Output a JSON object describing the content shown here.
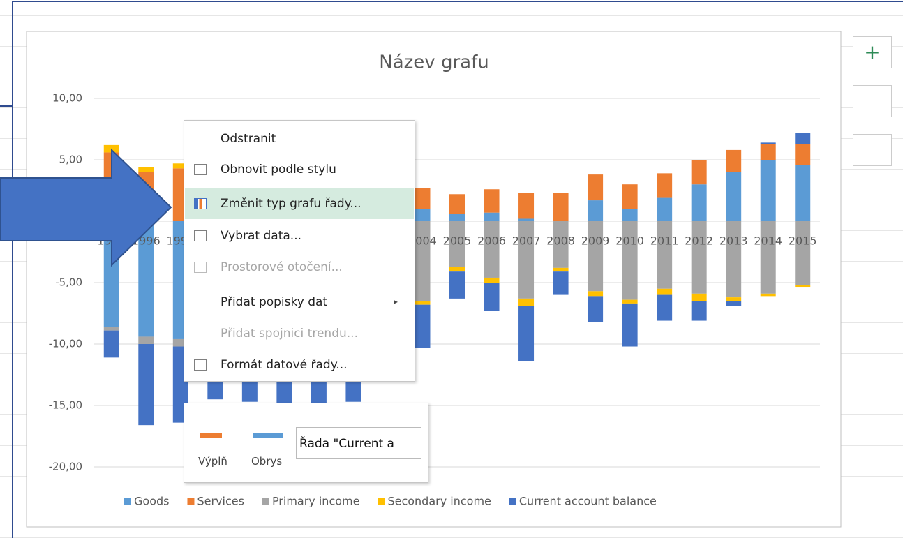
{
  "chart_data": {
    "type": "stacked_bar",
    "title": "Název grafu",
    "categories": [
      "1995",
      "1996",
      "1997",
      "1998",
      "1999",
      "2000",
      "2001",
      "2002",
      "2003",
      "2004",
      "2005",
      "2006",
      "2007",
      "2008",
      "2009",
      "2010",
      "2011",
      "2012",
      "2013",
      "2014",
      "2015"
    ],
    "series": [
      {
        "name": "Goods",
        "color": "#5b9bd5",
        "values": [
          -8.6,
          -9.4,
          -9.6,
          -9.0,
          -8.0,
          -8.5,
          -7.0,
          -5.5,
          -3.0,
          1.0,
          0.6,
          0.7,
          0.2,
          0.0,
          1.7,
          1.0,
          1.9,
          3.0,
          4.0,
          5.0,
          4.6
        ]
      },
      {
        "name": "Services",
        "color": "#ed7d31",
        "values": [
          5.6,
          4.0,
          4.3,
          3.5,
          3.0,
          3.2,
          3.0,
          2.8,
          2.7,
          1.7,
          1.6,
          1.9,
          2.1,
          2.3,
          2.1,
          2.0,
          2.0,
          2.0,
          1.8,
          1.3,
          1.7
        ]
      },
      {
        "name": "Primary income",
        "color": "#a5a5a5",
        "values": [
          -0.3,
          -0.6,
          -0.6,
          -1.0,
          -1.2,
          -1.5,
          -2.0,
          -3.5,
          -5.0,
          -6.5,
          -3.7,
          -4.6,
          -6.3,
          -3.8,
          -5.7,
          -6.4,
          -5.5,
          -5.9,
          -6.2,
          -5.9,
          -5.2
        ]
      },
      {
        "name": "Secondary income",
        "color": "#ffc000",
        "values": [
          0.6,
          0.4,
          0.4,
          0.3,
          0.2,
          0.1,
          -0.1,
          -0.2,
          -0.3,
          -0.3,
          -0.4,
          -0.4,
          -0.6,
          -0.3,
          -0.4,
          -0.3,
          -0.5,
          -0.6,
          -0.3,
          -0.2,
          -0.2
        ]
      },
      {
        "name": "Current account balance",
        "color": "#4472c4",
        "values": [
          -2.2,
          -6.6,
          -6.2,
          -4.5,
          -5.5,
          -5.5,
          -6.0,
          -5.5,
          -3.5,
          -3.5,
          -2.2,
          -2.3,
          -4.5,
          -1.9,
          -2.1,
          -3.5,
          -2.1,
          -1.6,
          -0.4,
          0.1,
          0.9
        ]
      }
    ],
    "ylim": [
      -20,
      10
    ],
    "yticks": [
      {
        "value": -20,
        "label": "-20,00"
      },
      {
        "value": -15,
        "label": "-15,00"
      },
      {
        "value": -10,
        "label": "-10,00"
      },
      {
        "value": -5,
        "label": "-5,00"
      },
      {
        "value": 0,
        "label": "0,00"
      },
      {
        "value": 5,
        "label": "5,00"
      },
      {
        "value": 10,
        "label": "10,00"
      }
    ],
    "grid": true,
    "legend": "bottom"
  },
  "context_menu": {
    "items": [
      "Odstranit",
      "Obnovit podle stylu",
      "Změnit typ grafu řady...",
      "Vybrat data...",
      "Prostorové otočení...",
      "Přidat popisky dat",
      "Přidat spojnici trendu...",
      "Formát datové řady..."
    ]
  },
  "mini_toolbar": {
    "fill_label": "Výplň",
    "outline_label": "Obrys",
    "series_dropdown": "Řada \"Current a"
  }
}
